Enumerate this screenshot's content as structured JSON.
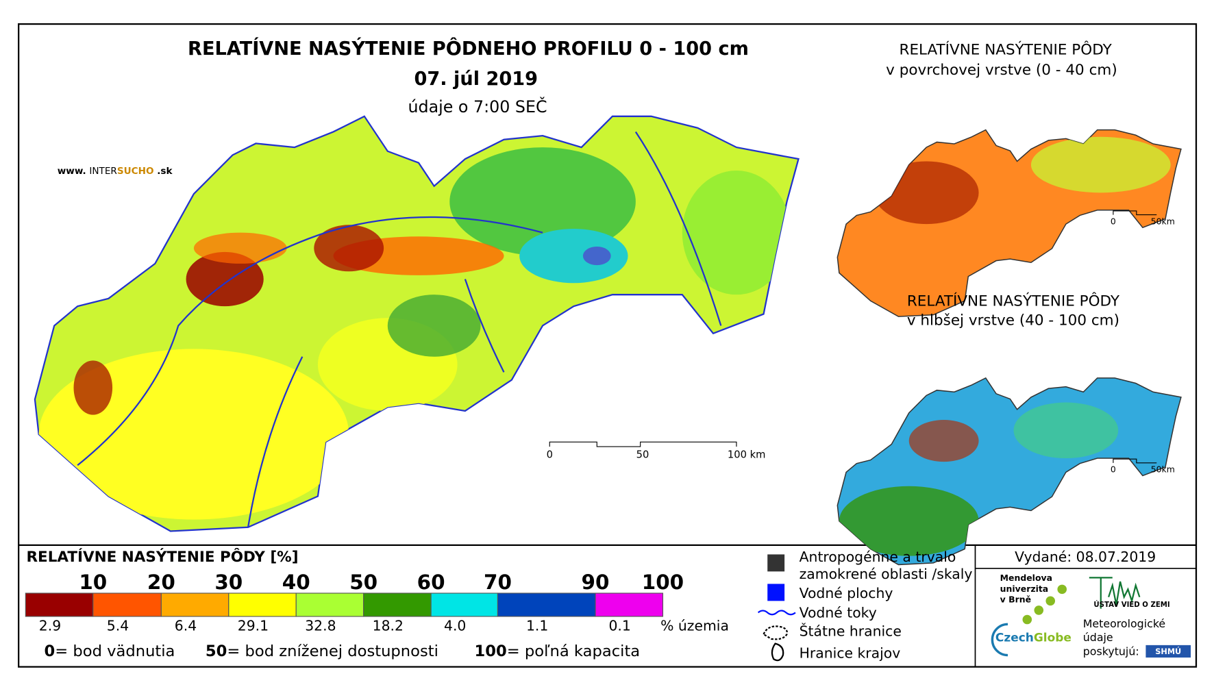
{
  "main_title": "RELATÍVNE NASÝTENIE PÔDNEHO PROFILU 0 - 100 cm",
  "date": "07. júl 2019",
  "time_note": "údaje o 7:00 SEČ",
  "website": {
    "prefix": "www.",
    "inter": "INTER",
    "sucho": "SUCHO",
    "suffix": ".sk"
  },
  "main_scale": [
    "0",
    "50",
    "100 km"
  ],
  "inset_top": {
    "title": "RELATÍVNE NASÝTENIE PÔDY",
    "subtitle": "v povrchovej vrstve (0 - 40 cm)",
    "scale": [
      "0",
      "50km"
    ]
  },
  "inset_bottom": {
    "title": "RELATÍVNE NASÝTENIE PÔDY",
    "subtitle": "v hlbšej vrstve (40 - 100 cm)",
    "scale": [
      "0",
      "50km"
    ]
  },
  "legend": {
    "title": "RELATÍVNE NASÝTENIE PÔDY [%]",
    "ticks": [
      10,
      20,
      30,
      40,
      50,
      60,
      70,
      90,
      100
    ],
    "colors": [
      "#990000",
      "#ff5500",
      "#ffaa00",
      "#ffff00",
      "#aaff33",
      "#339900",
      "#00e5e5",
      "#0044bb",
      "#ee00ee"
    ],
    "shares": [
      2.9,
      5.4,
      6.4,
      29.1,
      32.8,
      18.2,
      {
        "value": 4,
        "label": "4.0"
      },
      1.1,
      0.1
    ],
    "shares_unit": "% územia",
    "notes": [
      {
        "value": "0",
        "text": "= bod vädnutia"
      },
      {
        "value": "50",
        "text": "= bod zníženej dostupnosti"
      },
      {
        "value": "100",
        "text": "= poľná kapacita"
      }
    ]
  },
  "map_legend": [
    "Antropogénne a trvalo",
    "zamokrené oblasti /skaly",
    "Vodné plochy",
    "Vodné toky",
    "Štátne hranice",
    "Hranice krajov"
  ],
  "issued": "Vydané: 08.07.2019",
  "logos": {
    "mendel": [
      "Mendelova",
      "univerzita",
      "v Brně"
    ],
    "czechglobe": [
      "Czech",
      "Globe"
    ],
    "uvz": "ÚSTAV VIED O ZEMI",
    "meteo": [
      "Meteorologické",
      "údaje",
      "poskytujú:"
    ],
    "shmu": "SHMÚ"
  }
}
